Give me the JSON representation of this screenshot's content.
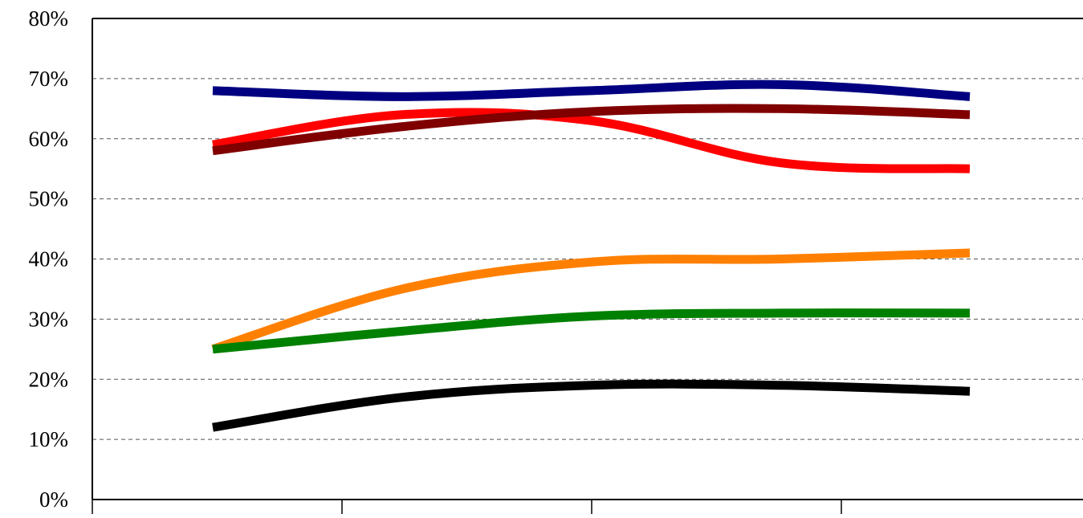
{
  "chart_data": {
    "type": "line",
    "title": "",
    "xlabel": "",
    "ylabel": "",
    "ylim": [
      0,
      80
    ],
    "yticks": [
      "0%",
      "10%",
      "20%",
      "30%",
      "40%",
      "50%",
      "60%",
      "70%",
      "80%"
    ],
    "grid": "horizontal dashed",
    "legend": "none",
    "x": [
      1,
      2,
      3,
      4,
      5
    ],
    "series": [
      {
        "color": "#000080",
        "values": [
          68,
          67,
          68,
          69,
          67
        ]
      },
      {
        "color": "#ff0000",
        "values": [
          59,
          64,
          63,
          56,
          55
        ]
      },
      {
        "color": "#800000",
        "values": [
          58,
          62,
          64.5,
          65,
          64
        ]
      },
      {
        "color": "#ff8000",
        "values": [
          25,
          35,
          39.5,
          40,
          41
        ]
      },
      {
        "color": "#008000",
        "values": [
          25,
          28,
          30.5,
          31,
          31
        ]
      },
      {
        "color": "#000000",
        "values": [
          12,
          17,
          19,
          19,
          18
        ]
      }
    ]
  }
}
